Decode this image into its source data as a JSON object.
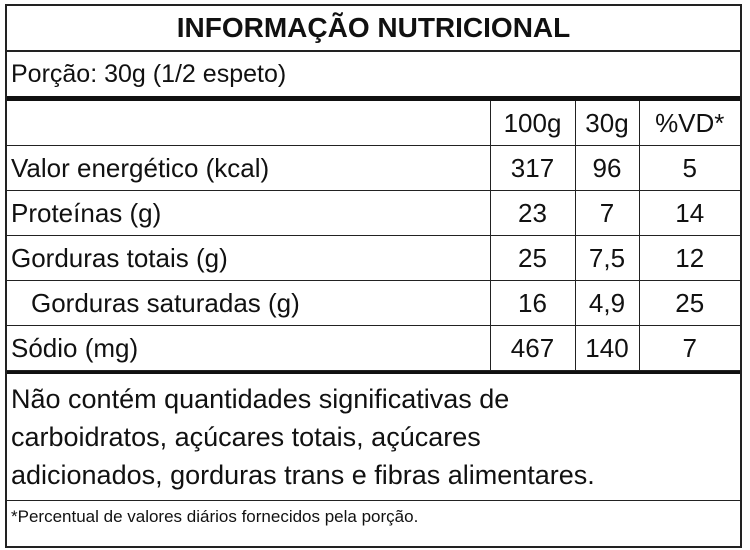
{
  "header": {
    "title": "INFORMAÇÃO NUTRICIONAL",
    "serving": "Porção: 30g (1/2 espeto)"
  },
  "table": {
    "columns": [
      "100g",
      "30g",
      "%VD*"
    ],
    "rows": [
      [
        "Valor energético (kcal)",
        "317",
        "96",
        "5"
      ],
      [
        "Proteínas (g)",
        "23",
        "7",
        "14"
      ],
      [
        "Gorduras totais (g)",
        "25",
        "7,5",
        "12"
      ],
      [
        "Gorduras saturadas (g)",
        "16",
        "4,9",
        "25"
      ],
      [
        "Sódio (mg)",
        "467",
        "140",
        "7"
      ]
    ]
  },
  "note": [
    "Não contém quantidades significativas de",
    "carboidratos, açúcares totais, açúcares",
    "adicionados, gorduras trans e fibras alimentares."
  ],
  "footnote": "*Percentual de valores diários fornecidos pela porção."
}
